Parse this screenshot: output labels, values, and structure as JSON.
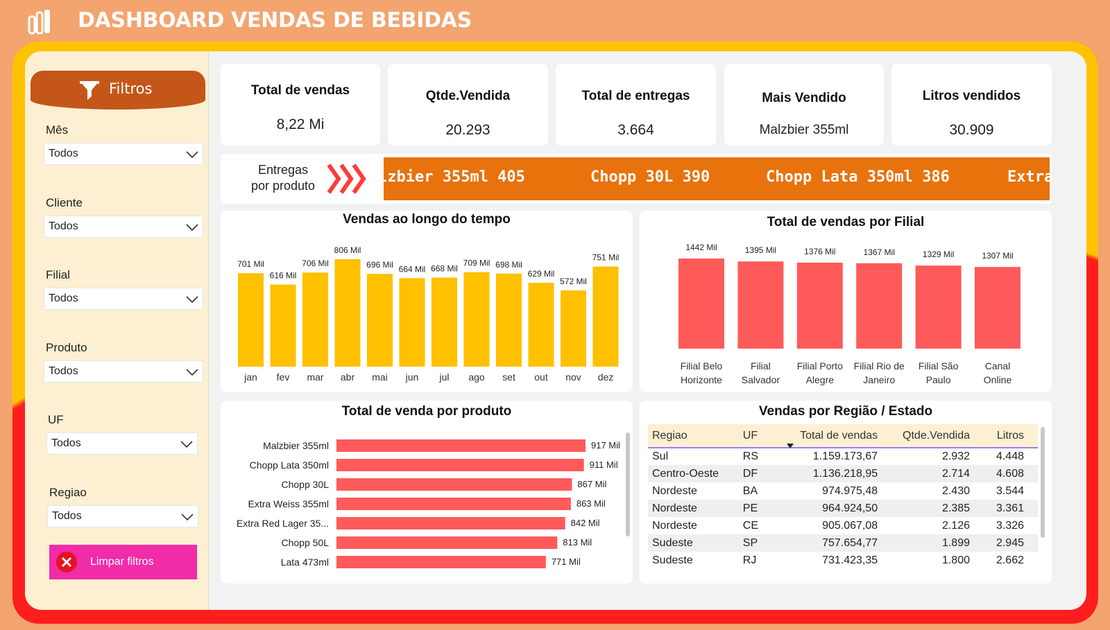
{
  "header": {
    "title": "DASHBOARD VENDAS DE BEBIDAS",
    "logo_icon": "powerbi-logo-icon"
  },
  "colors": {
    "background": "#F3A46F",
    "accent": "#E8720C",
    "bar_yellow": "#FFC000",
    "bar_red": "#FF5A5A",
    "pink": "#F02CA8"
  },
  "sidebar": {
    "title": "Filtros",
    "filters": [
      {
        "label": "Mês",
        "value": "Todos"
      },
      {
        "label": "Cliente",
        "value": "Todos"
      },
      {
        "label": "Filial",
        "value": "Todos"
      },
      {
        "label": "Produto",
        "value": "Todos"
      },
      {
        "label": "UF",
        "value": "Todos"
      },
      {
        "label": "Regiao",
        "value": "Todos"
      }
    ],
    "clear_label": "Limpar filtros"
  },
  "kpis": [
    {
      "label": "Total de vendas",
      "value": "8,22 Mi"
    },
    {
      "label": "Qtde.Vendida",
      "value": "20.293"
    },
    {
      "label": "Total de entregas",
      "value": "3.664"
    },
    {
      "label": "Mais Vendido",
      "value": "Malzbier 355ml"
    },
    {
      "label": "Litros vendidos",
      "value": "30.909"
    }
  ],
  "ticker": {
    "label_line1": "Entregas",
    "label_line2": "por produto",
    "items": [
      "lzbier 355ml 405",
      "Chopp 30L 390",
      "Chopp Lata 350ml 386",
      "Extra"
    ]
  },
  "chart_data": [
    {
      "type": "bar",
      "title": "Vendas ao longo do tempo",
      "categories": [
        "jan",
        "fev",
        "mar",
        "abr",
        "mai",
        "jun",
        "jul",
        "ago",
        "set",
        "out",
        "nov",
        "dez"
      ],
      "values": [
        701,
        616,
        706,
        806,
        696,
        664,
        668,
        709,
        698,
        629,
        572,
        751
      ],
      "labels": [
        "701 Mil",
        "616 Mil",
        "706 Mil",
        "806 Mil",
        "696 Mil",
        "664 Mil",
        "668 Mil",
        "709 Mil",
        "698 Mil",
        "629 Mil",
        "572 Mil",
        "751 Mil"
      ],
      "unit": "Mil",
      "ylim": [
        0,
        820
      ]
    },
    {
      "type": "bar",
      "title": "Total de vendas por Filial",
      "categories": [
        [
          "Filial Belo",
          "Horizonte"
        ],
        [
          "Filial",
          "Salvador"
        ],
        [
          "Filial Porto",
          "Alegre"
        ],
        [
          "Filial Rio de",
          "Janeiro"
        ],
        [
          "Filial São",
          "Paulo"
        ],
        [
          "Canal",
          "Online"
        ]
      ],
      "values": [
        1442,
        1395,
        1376,
        1367,
        1329,
        1307
      ],
      "labels": [
        "1442 Mil",
        "1395 Mil",
        "1376 Mil",
        "1367 Mil",
        "1329 Mil",
        "1307 Mil"
      ],
      "unit": "Mil",
      "ylim": [
        0,
        1442
      ]
    },
    {
      "type": "bar",
      "orientation": "horizontal",
      "title": "Total de venda por produto",
      "categories": [
        "Malzbier 355ml",
        "Chopp Lata 350ml",
        "Chopp 30L",
        "Extra Weiss 355ml",
        "Extra Red Lager 35...",
        "Chopp 50L",
        "Lata 473ml"
      ],
      "values": [
        917,
        911,
        867,
        863,
        842,
        813,
        771
      ],
      "labels": [
        "917 Mil",
        "911 Mil",
        "867 Mil",
        "863 Mil",
        "842 Mil",
        "813 Mil",
        "771 Mil"
      ],
      "unit": "Mil",
      "xlim": [
        0,
        917
      ]
    }
  ],
  "table": {
    "title": "Vendas por Região / Estado",
    "columns": [
      "Regiao",
      "UF",
      "Total de vendas",
      "Qtde.Vendida",
      "Litros"
    ],
    "rows": [
      [
        "Sul",
        "RS",
        "1.159.173,67",
        "2.932",
        "4.448"
      ],
      [
        "Centro-Oeste",
        "DF",
        "1.136.218,95",
        "2.714",
        "4.608"
      ],
      [
        "Nordeste",
        "BA",
        "974.975,48",
        "2.430",
        "3.544"
      ],
      [
        "Nordeste",
        "PE",
        "964.924,50",
        "2.385",
        "3.361"
      ],
      [
        "Nordeste",
        "CE",
        "905.067,08",
        "2.126",
        "3.326"
      ],
      [
        "Sudeste",
        "SP",
        "757.654,77",
        "1.899",
        "2.945"
      ],
      [
        "Sudeste",
        "RJ",
        "731.423,35",
        "1.800",
        "2.662"
      ]
    ]
  }
}
